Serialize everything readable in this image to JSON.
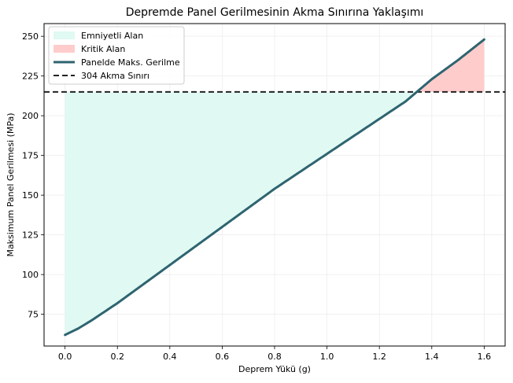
{
  "chart_data": {
    "type": "line",
    "title": "Depremde Panel Gerilmesinin Akma Sınırına Yaklaşımı",
    "xlabel": "Deprem Yükü (g)",
    "ylabel": "Maksimum Panel Gerilmesi (MPa)",
    "xlim": [
      -0.08,
      1.68
    ],
    "ylim": [
      55,
      258
    ],
    "xticks": [
      "0.0",
      "0.2",
      "0.4",
      "0.6",
      "0.8",
      "1.0",
      "1.2",
      "1.4",
      "1.6"
    ],
    "yticks": [
      "75",
      "100",
      "125",
      "150",
      "175",
      "200",
      "225",
      "250"
    ],
    "grid": true,
    "legend_position": "upper-left",
    "series": [
      {
        "name": "Panelde Maks. Gerilme",
        "kind": "line",
        "color": "#2e6470",
        "x": [
          0.0,
          0.05,
          0.1,
          0.2,
          0.3,
          0.4,
          0.5,
          0.6,
          0.7,
          0.8,
          0.9,
          1.0,
          1.1,
          1.2,
          1.3,
          1.35,
          1.4,
          1.5,
          1.6
        ],
        "y": [
          62,
          66,
          71,
          82,
          94,
          106,
          118,
          130,
          142,
          154,
          165,
          176,
          187,
          198,
          209,
          216,
          223,
          235,
          248
        ]
      },
      {
        "name": "304 Akma Sınırı",
        "kind": "hline",
        "color": "#222222",
        "y": 215
      }
    ],
    "fills": [
      {
        "name": "Emniyetli Alan",
        "color": "#e0f9f3",
        "x_range": [
          0.0,
          1.6
        ],
        "between": "curve_and_limit",
        "where": "curve_below_limit"
      },
      {
        "name": "Kritik Alan",
        "color": "#ffcccc",
        "x_range": [
          0.0,
          1.6
        ],
        "between": "limit_and_curve",
        "where": "curve_above_limit"
      }
    ]
  }
}
